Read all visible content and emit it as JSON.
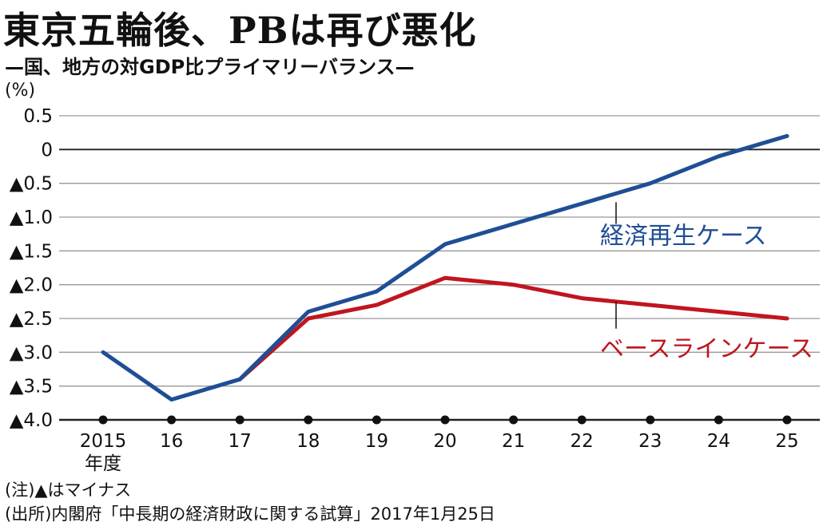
{
  "header": {
    "title": "東京五輪後、PBは再び悪化",
    "subtitle": "—国、地方の対GDP比プライマリーバランス—",
    "unit": "(%)"
  },
  "notes": {
    "note1": "(注)▲はマイナス",
    "source": "(出所)内閣府「中長期の経済財政に関する試算」2017年1月25日"
  },
  "colors": {
    "blue": "#1f4e96",
    "red": "#c0151f",
    "grid": "#999999",
    "zero": "#222222"
  },
  "chart_data": {
    "type": "line",
    "x": [
      "2015",
      "16",
      "17",
      "18",
      "19",
      "20",
      "21",
      "22",
      "23",
      "24",
      "25"
    ],
    "x_first_sublabel": "年度",
    "y_ticks": [
      0.5,
      0,
      -0.5,
      -1.0,
      -1.5,
      -2.0,
      -2.5,
      -3.0,
      -3.5,
      -4.0
    ],
    "y_tick_labels": [
      "0.5",
      "0",
      "▲0.5",
      "▲1.0",
      "▲1.5",
      "▲2.0",
      "▲2.5",
      "▲3.0",
      "▲3.5",
      "▲4.0"
    ],
    "ylim": [
      -4.0,
      0.5
    ],
    "series": [
      {
        "name": "経済再生ケース",
        "color": "#1f4e96",
        "values": [
          -3.0,
          -3.7,
          -3.4,
          -2.4,
          -2.1,
          -1.4,
          -1.1,
          -0.8,
          -0.5,
          -0.1,
          0.2
        ]
      },
      {
        "name": "ベースラインケース",
        "color": "#c0151f",
        "values": [
          null,
          null,
          -3.4,
          -2.5,
          -2.3,
          -1.9,
          -2.0,
          -2.2,
          -2.3,
          -2.4,
          -2.5
        ]
      }
    ]
  }
}
